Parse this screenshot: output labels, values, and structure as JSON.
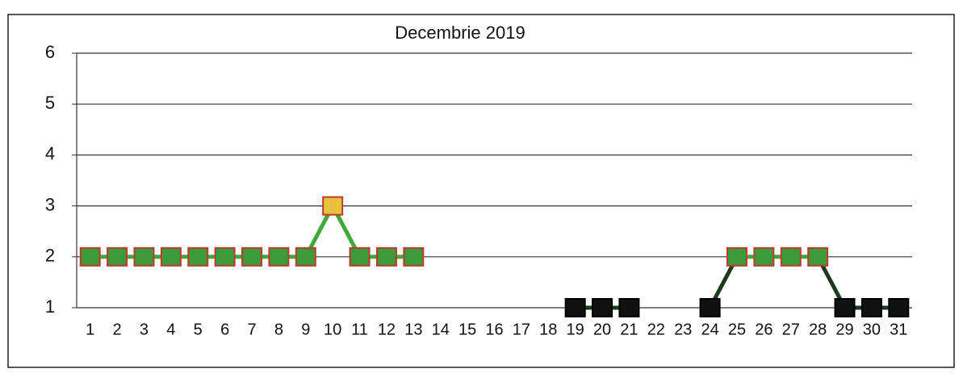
{
  "chart_data": {
    "type": "line",
    "title": "Decembrie 2019",
    "categories": [
      "1",
      "2",
      "3",
      "4",
      "5",
      "6",
      "7",
      "8",
      "9",
      "10",
      "11",
      "12",
      "13",
      "14",
      "15",
      "16",
      "17",
      "18",
      "19",
      "20",
      "21",
      "22",
      "23",
      "24",
      "25",
      "26",
      "27",
      "28",
      "29",
      "30",
      "31"
    ],
    "values": [
      2,
      2,
      2,
      2,
      2,
      2,
      2,
      2,
      2,
      3,
      2,
      2,
      2,
      null,
      null,
      null,
      null,
      null,
      1,
      1,
      1,
      null,
      null,
      1,
      2,
      2,
      2,
      2,
      1,
      1,
      1
    ],
    "marker_colors": [
      "#3c9a3a",
      "#3c9a3a",
      "#3c9a3a",
      "#3c9a3a",
      "#3c9a3a",
      "#3c9a3a",
      "#3c9a3a",
      "#3c9a3a",
      "#3c9a3a",
      "#e8c23c",
      "#3c9a3a",
      "#3c9a3a",
      "#3c9a3a",
      null,
      null,
      null,
      null,
      null,
      "#111111",
      "#111111",
      "#111111",
      null,
      null,
      "#111111",
      "#3c9a3a",
      "#3c9a3a",
      "#3c9a3a",
      "#3c9a3a",
      "#111111",
      "#111111",
      "#111111"
    ],
    "ylim": [
      1,
      6
    ],
    "yticks": [
      1,
      2,
      3,
      4,
      5,
      6
    ],
    "grid": true
  }
}
